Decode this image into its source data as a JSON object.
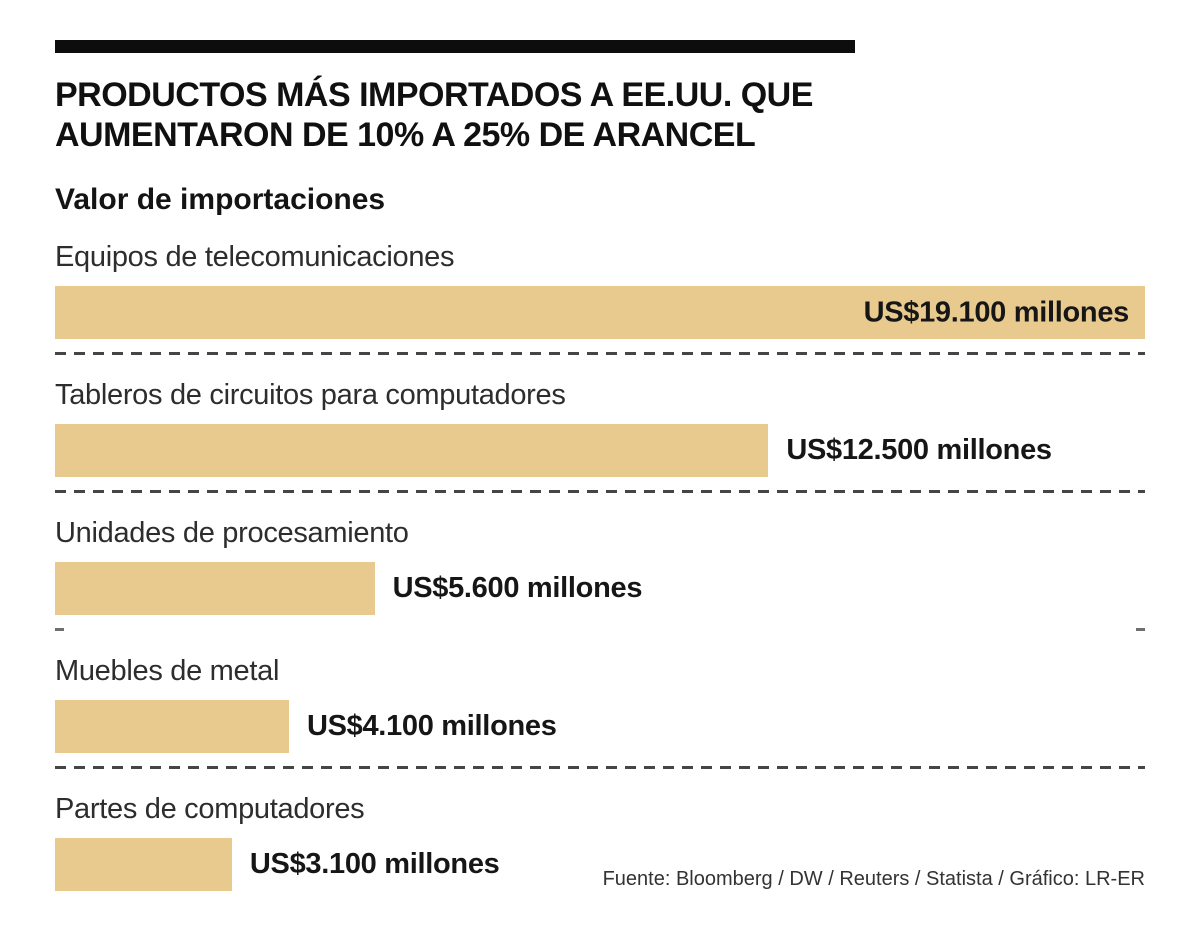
{
  "header": {
    "title_lines": [
      "PRODUCTOS MÁS IMPORTADOS A EE.UU. QUE",
      "AUMENTARON DE 10% A 25% DE ARANCEL"
    ],
    "subtitle": "Valor de importaciones"
  },
  "chart_data": {
    "type": "bar",
    "orientation": "horizontal",
    "title": "PRODUCTOS MÁS IMPORTADOS A EE.UU. QUE AUMENTARON DE 10% A 25% DE ARANCEL",
    "subtitle": "Valor de importaciones",
    "unit": "US$ millones",
    "categories": [
      "Equipos de telecomunicaciones",
      "Tableros de circuitos para computadores",
      "Unidades de procesamiento",
      "Muebles de metal",
      "Partes de computadores"
    ],
    "values": [
      19100,
      12500,
      5600,
      4100,
      3100
    ],
    "value_labels": [
      "US$19.100 millones",
      "US$12.500 millones",
      "US$5.600 millones",
      "US$4.100 millones",
      "US$3.100 millones"
    ],
    "value_label_inside": [
      true,
      false,
      false,
      false,
      false
    ],
    "separators": [
      "full",
      "full",
      "ends",
      "full",
      "none"
    ],
    "xlim": [
      0,
      19100
    ],
    "grid": false,
    "legend": false,
    "bar_color": "#e8ca8e"
  },
  "footer": {
    "source": "Fuente: Bloomberg / DW / Reuters / Statista / Gráfico: LR-ER"
  },
  "colors": {
    "bar": "#e8ca8e",
    "title_text": "#101010",
    "label_text": "#2d2d2d",
    "dash": "#454545",
    "rule": "#0d0d0d",
    "background": "#ffffff"
  }
}
